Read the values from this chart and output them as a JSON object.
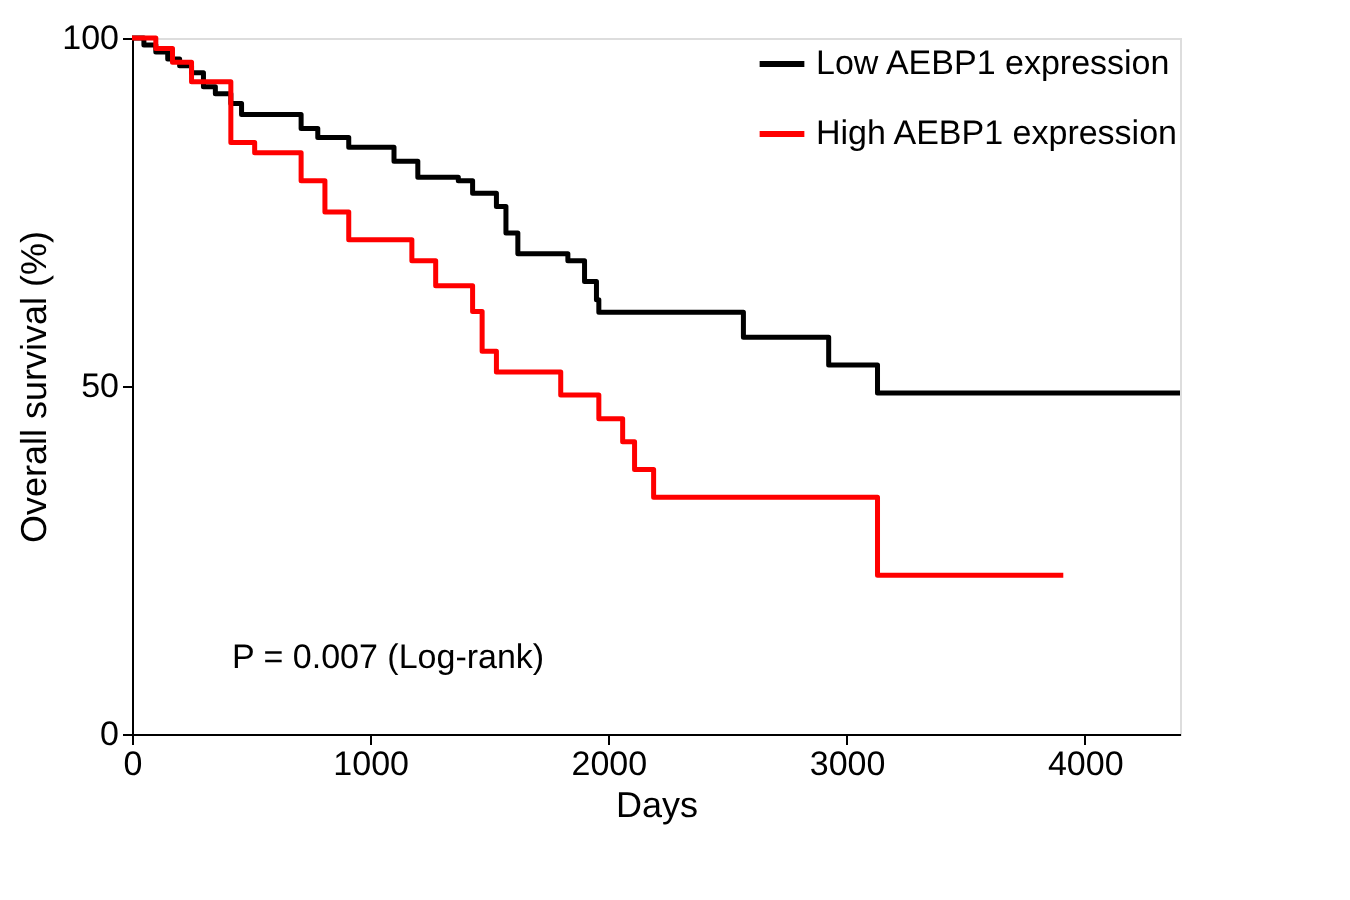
{
  "chart_data": {
    "type": "step",
    "xlabel": "Days",
    "ylabel": "Overall survival (%)",
    "xlim": [
      0,
      4400
    ],
    "xticks": [
      0,
      1000,
      2000,
      3000,
      4000
    ],
    "ylim": [
      0,
      100
    ],
    "yticks": [
      0,
      50,
      100
    ],
    "legend": "top right",
    "grid": false,
    "line_style": "solid",
    "marker": "none",
    "annotations": [
      "P = 0.007 (Log-rank)"
    ],
    "series": [
      {
        "name": "Low AEBP1 expression",
        "color": "#000000",
        "x": [
          0,
          50,
          100,
          150,
          200,
          250,
          300,
          350,
          415,
          460,
          710,
          780,
          910,
          1100,
          1200,
          1370,
          1430,
          1530,
          1570,
          1620,
          1830,
          1900,
          1950,
          1960,
          2567,
          2925,
          3130,
          4400
        ],
        "values": [
          100,
          99,
          98,
          97,
          96,
          95,
          93,
          92,
          90.6,
          89,
          87,
          85.7,
          84.3,
          82.3,
          80,
          79.5,
          77.7,
          75.8,
          72,
          69,
          68,
          65,
          62.4,
          60.6,
          57,
          53,
          49,
          49
        ]
      },
      {
        "name": "High AEBP1 expression",
        "color": "#ff0000",
        "x": [
          0,
          100,
          170,
          250,
          415,
          515,
          710,
          810,
          910,
          1175,
          1275,
          1430,
          1470,
          1530,
          1800,
          1960,
          2060,
          2110,
          2190,
          3130,
          3910
        ],
        "values": [
          100,
          98.5,
          96.5,
          93.7,
          85,
          83.5,
          79.5,
          75,
          71,
          68,
          64.4,
          60.7,
          55,
          52,
          48.7,
          45.3,
          42,
          38,
          34,
          22.8,
          22.8
        ]
      }
    ]
  }
}
